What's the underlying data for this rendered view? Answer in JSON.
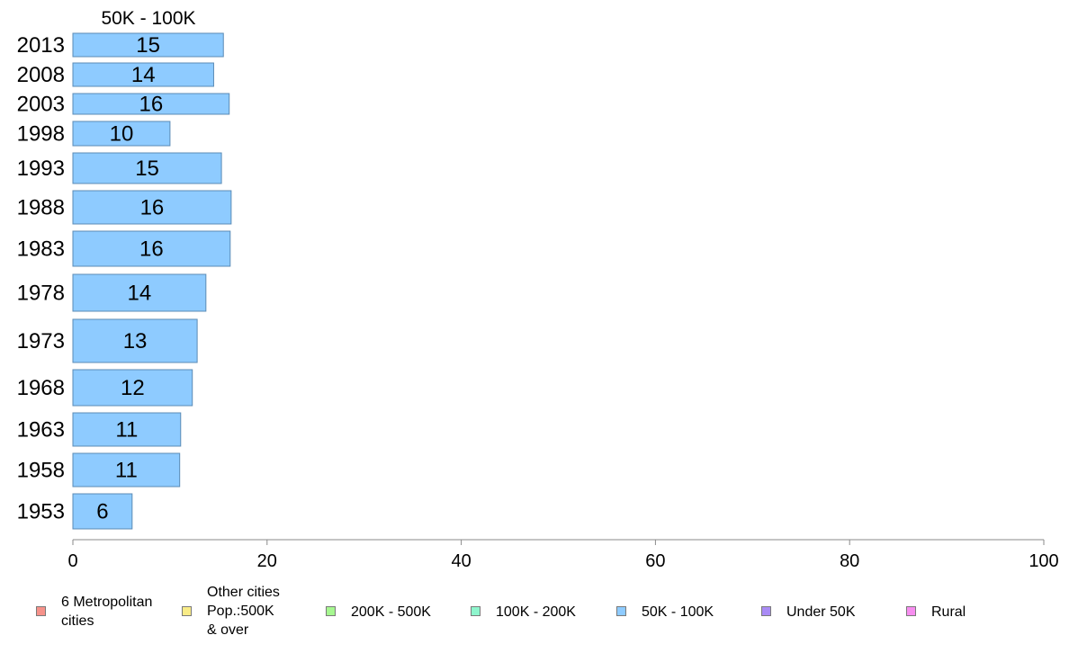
{
  "chart_data": {
    "type": "bar",
    "orientation": "horizontal",
    "title": "50K - 100K",
    "categories": [
      "2013",
      "2008",
      "2003",
      "1998",
      "1993",
      "1988",
      "1983",
      "1978",
      "1973",
      "1968",
      "1963",
      "1958",
      "1953"
    ],
    "values": [
      15.5,
      14.5,
      16.1,
      10.0,
      15.3,
      16.3,
      16.2,
      13.7,
      12.8,
      12.3,
      11.1,
      11.0,
      6.1
    ],
    "value_labels": [
      "15",
      "14",
      "16",
      "10",
      "15",
      "16",
      "16",
      "14",
      "13",
      "12",
      "11",
      "11",
      "6"
    ],
    "xlim": [
      0,
      100
    ],
    "x_ticks": [
      "0",
      "20",
      "40",
      "60",
      "80",
      "100"
    ],
    "grid": false,
    "bar_color": "#8ecbff",
    "bar_border_color": "#5b8bb5",
    "legend_position": "bottom",
    "legend": [
      {
        "label": "6 Metropolitan\n cities",
        "color": "#f6928a"
      },
      {
        "label": "Other cities\nPop.:500K\n & over",
        "color": "#f9ec87"
      },
      {
        "label": "200K - 500K",
        "color": "#a6f790"
      },
      {
        "label": "100K - 200K",
        "color": "#8ef5cd"
      },
      {
        "label": "50K - 100K",
        "color": "#8ecbff"
      },
      {
        "label": "Under 50K",
        "color": "#a98bf5"
      },
      {
        "label": "Rural",
        "color": "#f78ef0"
      }
    ]
  }
}
